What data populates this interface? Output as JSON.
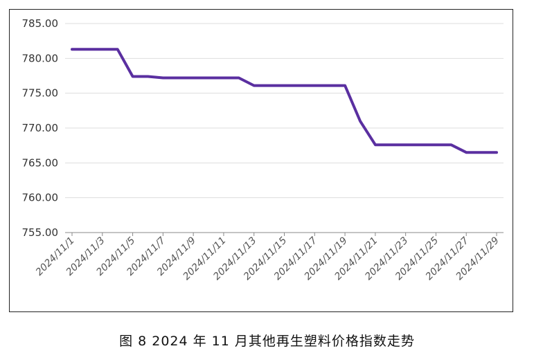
{
  "caption": "图 8  2024 年 11 月其他再生塑料价格指数走势",
  "colors": {
    "line": "#5a2fa0",
    "grid": "#dddddd",
    "axis": "#888888"
  },
  "chart_data": {
    "type": "line",
    "title": "",
    "xlabel": "",
    "ylabel": "",
    "ylim": [
      755,
      785
    ],
    "yticks": [
      "785.00",
      "780.00",
      "775.00",
      "770.00",
      "765.00",
      "760.00",
      "755.00"
    ],
    "xticks": [
      "2024/11/1",
      "2024/11/3",
      "2024/11/5",
      "2024/11/7",
      "2024/11/9",
      "2024/11/11",
      "2024/11/13",
      "2024/11/15",
      "2024/11/17",
      "2024/11/19",
      "2024/11/21",
      "2024/11/23",
      "2024/11/25",
      "2024/11/27",
      "2024/11/29"
    ],
    "grid": true,
    "series": [
      {
        "x": [
          "2024/11/1",
          "2024/11/2",
          "2024/11/3",
          "2024/11/4",
          "2024/11/5",
          "2024/11/6",
          "2024/11/7",
          "2024/11/8",
          "2024/11/9",
          "2024/11/10",
          "2024/11/11",
          "2024/11/12",
          "2024/11/13",
          "2024/11/14",
          "2024/11/15",
          "2024/11/16",
          "2024/11/17",
          "2024/11/18",
          "2024/11/19",
          "2024/11/20",
          "2024/11/21",
          "2024/11/22",
          "2024/11/23",
          "2024/11/24",
          "2024/11/25",
          "2024/11/26",
          "2024/11/27",
          "2024/11/28",
          "2024/11/29"
        ],
        "values": [
          781.3,
          781.3,
          781.3,
          781.3,
          777.4,
          777.4,
          777.2,
          777.2,
          777.2,
          777.2,
          777.2,
          777.2,
          776.1,
          776.1,
          776.1,
          776.1,
          776.1,
          776.1,
          776.1,
          771.0,
          767.6,
          767.6,
          767.6,
          767.6,
          767.6,
          767.6,
          766.5,
          766.5,
          766.5
        ]
      }
    ]
  }
}
